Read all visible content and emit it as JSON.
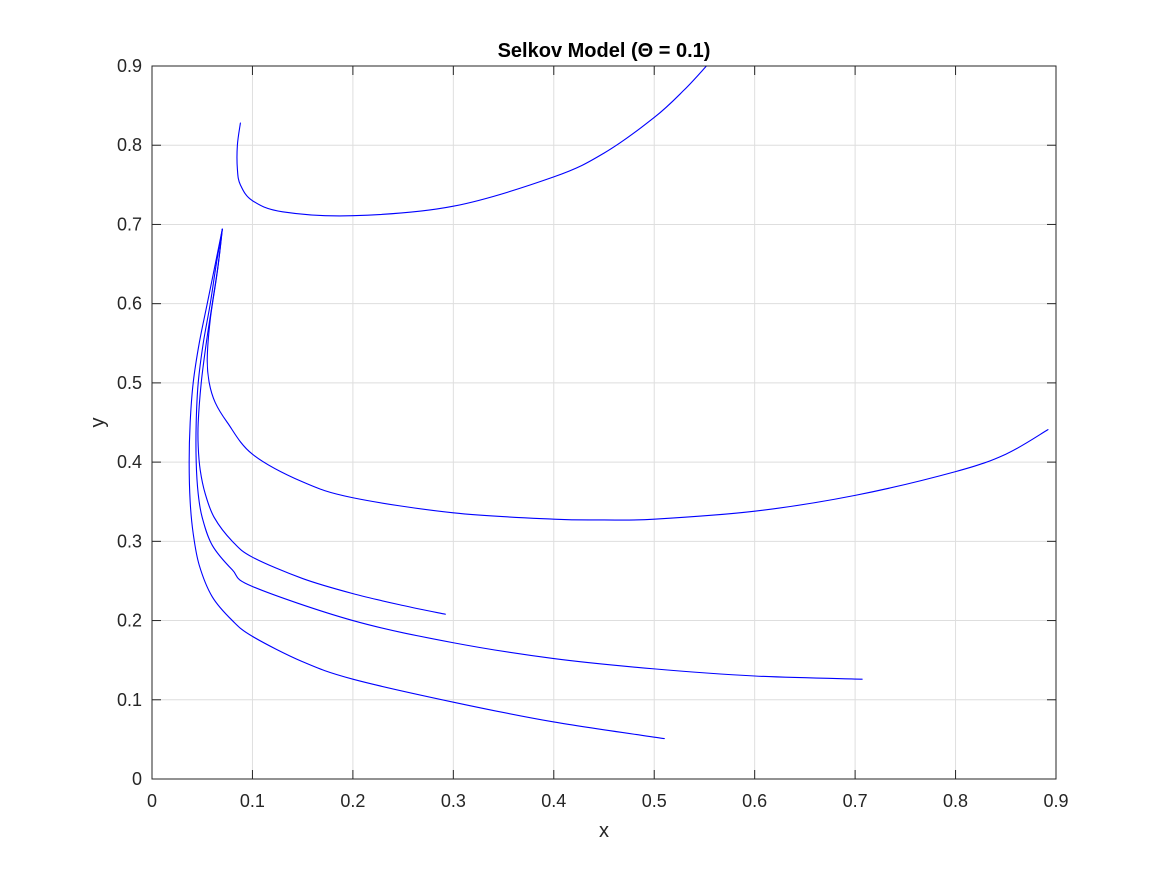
{
  "chart_data": {
    "type": "line",
    "title": "Selkov Model (Θ = 0.1)",
    "xlabel": "x",
    "ylabel": "y",
    "xlim": [
      0,
      0.9
    ],
    "ylim": [
      0,
      0.9
    ],
    "xticks": [
      0,
      0.1,
      0.2,
      0.3,
      0.4,
      0.5,
      0.6,
      0.7,
      0.8,
      0.9
    ],
    "yticks": [
      0,
      0.1,
      0.2,
      0.3,
      0.4,
      0.5,
      0.6,
      0.7,
      0.8,
      0.9
    ],
    "xtick_labels": [
      "0",
      "0.1",
      "0.2",
      "0.3",
      "0.4",
      "0.5",
      "0.6",
      "0.7",
      "0.8",
      "0.9"
    ],
    "ytick_labels": [
      "0",
      "0.1",
      "0.2",
      "0.3",
      "0.4",
      "0.5",
      "0.6",
      "0.7",
      "0.8",
      "0.9"
    ],
    "grid": true,
    "line_color": "#0000ff",
    "series": [
      {
        "x": [
          0.088,
          0.085,
          0.085,
          0.088,
          0.1,
          0.13,
          0.2,
          0.3,
          0.4,
          0.45,
          0.5,
          0.53,
          0.552
        ],
        "y": [
          0.828,
          0.8,
          0.77,
          0.75,
          0.73,
          0.716,
          0.711,
          0.723,
          0.76,
          0.79,
          0.835,
          0.87,
          0.9
        ]
      },
      {
        "x": [
          0.07,
          0.065,
          0.058,
          0.055,
          0.057,
          0.063,
          0.075,
          0.1,
          0.15,
          0.2,
          0.3,
          0.4,
          0.45,
          0.5,
          0.6,
          0.7,
          0.8,
          0.85,
          0.892
        ],
        "y": [
          0.694,
          0.64,
          0.58,
          0.53,
          0.5,
          0.475,
          0.45,
          0.41,
          0.375,
          0.355,
          0.336,
          0.328,
          0.327,
          0.328,
          0.338,
          0.358,
          0.388,
          0.41,
          0.441
        ]
      },
      {
        "x": [
          0.07,
          0.066,
          0.06,
          0.054,
          0.049,
          0.046,
          0.046,
          0.048,
          0.053,
          0.062,
          0.08,
          0.1,
          0.15,
          0.2,
          0.25,
          0.292
        ],
        "y": [
          0.694,
          0.65,
          0.6,
          0.55,
          0.5,
          0.45,
          0.42,
          0.39,
          0.36,
          0.33,
          0.3,
          0.28,
          0.253,
          0.234,
          0.219,
          0.208
        ]
      },
      {
        "x": [
          0.07,
          0.064,
          0.058,
          0.051,
          0.046,
          0.044,
          0.044,
          0.046,
          0.05,
          0.06,
          0.08,
          0.1,
          0.2,
          0.3,
          0.4,
          0.5,
          0.6,
          0.707
        ],
        "y": [
          0.694,
          0.65,
          0.6,
          0.55,
          0.5,
          0.45,
          0.4,
          0.36,
          0.33,
          0.295,
          0.264,
          0.243,
          0.2,
          0.172,
          0.152,
          0.139,
          0.13,
          0.126
        ]
      },
      {
        "x": [
          0.07,
          0.063,
          0.055,
          0.047,
          0.041,
          0.038,
          0.037,
          0.038,
          0.041,
          0.047,
          0.06,
          0.08,
          0.1,
          0.15,
          0.2,
          0.3,
          0.4,
          0.51
        ],
        "y": [
          0.694,
          0.65,
          0.6,
          0.55,
          0.5,
          0.45,
          0.4,
          0.35,
          0.31,
          0.27,
          0.23,
          0.2,
          0.18,
          0.148,
          0.126,
          0.097,
          0.072,
          0.051
        ]
      }
    ]
  }
}
